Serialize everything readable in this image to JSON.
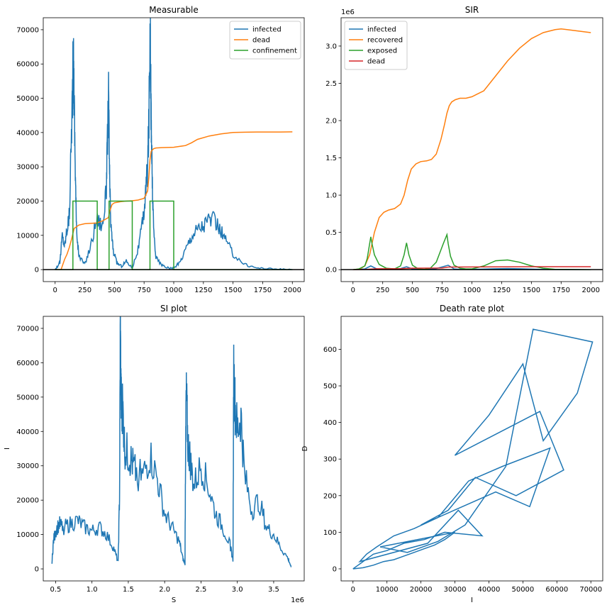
{
  "colors": {
    "infected": "#1f77b4",
    "dead_orange": "#ff7f0e",
    "green": "#2ca02c",
    "red": "#d62728",
    "black": "#000000"
  },
  "chart_data": [
    {
      "type": "line",
      "title": "Measurable",
      "xlabel": "",
      "ylabel": "",
      "xlim": [
        -100,
        2100
      ],
      "ylim": [
        -3500,
        73500
      ],
      "xticks": [
        0,
        250,
        500,
        750,
        1000,
        1250,
        1500,
        1750,
        2000
      ],
      "yticks": [
        0,
        10000,
        20000,
        30000,
        40000,
        50000,
        60000,
        70000
      ],
      "legend_position": "top-right",
      "hline": 0,
      "series": [
        {
          "name": "infected",
          "color": "#1f77b4",
          "noisy": true,
          "x": [
            0,
            40,
            60,
            80,
            100,
            120,
            140,
            150,
            155,
            160,
            170,
            180,
            200,
            250,
            300,
            350,
            400,
            430,
            440,
            450,
            455,
            460,
            470,
            490,
            520,
            560,
            600,
            650,
            700,
            740,
            760,
            780,
            790,
            800,
            805,
            810,
            815,
            820,
            830,
            850,
            900,
            950,
            1000,
            1050,
            1100,
            1150,
            1200,
            1250,
            1300,
            1350,
            1400,
            1450,
            1500,
            1600,
            1700,
            1800,
            1900,
            2000
          ],
          "y": [
            0,
            2000,
            10000,
            7000,
            12000,
            16000,
            44000,
            57000,
            59000,
            52000,
            30000,
            12000,
            4000,
            1500,
            7000,
            15000,
            13000,
            22000,
            35000,
            50500,
            40000,
            25000,
            13000,
            5500,
            2000,
            1000,
            2500,
            500,
            6000,
            14000,
            21000,
            30000,
            42000,
            70500,
            60000,
            43000,
            33000,
            24000,
            12000,
            3500,
            1200,
            500,
            400,
            2000,
            6000,
            10000,
            12000,
            13000,
            15000,
            14000,
            11000,
            8000,
            4500,
            1500,
            500,
            300,
            100,
            0
          ]
        },
        {
          "name": "dead",
          "color": "#ff7f0e",
          "x": [
            0,
            50,
            80,
            100,
            120,
            140,
            160,
            200,
            250,
            300,
            350,
            400,
            450,
            460,
            480,
            500,
            550,
            600,
            650,
            700,
            750,
            780,
            790,
            800,
            810,
            830,
            850,
            900,
            1000,
            1100,
            1150,
            1200,
            1300,
            1400,
            1500,
            1600,
            1700,
            1800,
            1900,
            2000
          ],
          "y": [
            0,
            0,
            3000,
            4500,
            6500,
            9000,
            12000,
            13000,
            13400,
            13500,
            13600,
            14200,
            15200,
            17000,
            19000,
            19500,
            19800,
            20000,
            20100,
            20300,
            20800,
            23000,
            27000,
            32000,
            34500,
            35300,
            35500,
            35600,
            35700,
            36200,
            37000,
            38000,
            39000,
            39600,
            40000,
            40100,
            40150,
            40150,
            40150,
            40200
          ]
        },
        {
          "name": "confinement",
          "color": "#2ca02c",
          "x": [
            0,
            150,
            150,
            355,
            355,
            455,
            455,
            650,
            650,
            800,
            800,
            1000,
            1000,
            2000
          ],
          "y": [
            0,
            0,
            20000,
            20000,
            0,
            0,
            20000,
            20000,
            0,
            0,
            20000,
            20000,
            0,
            0
          ]
        }
      ]
    },
    {
      "type": "line",
      "title": "SIR",
      "xlabel": "",
      "ylabel": "",
      "exponent_label": "1e6",
      "xlim": [
        -100,
        2100
      ],
      "ylim": [
        -0.16,
        3.38
      ],
      "xticks": [
        0,
        250,
        500,
        750,
        1000,
        1250,
        1500,
        1750,
        2000
      ],
      "yticks": [
        0.0,
        0.5,
        1.0,
        1.5,
        2.0,
        2.5,
        3.0
      ],
      "ytick_labels": [
        "0.0",
        "0.5",
        "1.0",
        "1.5",
        "2.0",
        "2.5",
        "3.0"
      ],
      "legend_position": "top-left",
      "hline": 0,
      "series": [
        {
          "name": "infected",
          "color": "#1f77b4",
          "x": [
            0,
            100,
            150,
            200,
            300,
            400,
            450,
            500,
            600,
            700,
            800,
            850,
            900,
            1000,
            1200,
            1300,
            1400,
            1600,
            2000
          ],
          "y": [
            0,
            0.01,
            0.05,
            0.01,
            0.005,
            0.015,
            0.04,
            0.01,
            0.005,
            0.015,
            0.06,
            0.01,
            0.004,
            0.004,
            0.012,
            0.015,
            0.012,
            0.004,
            0
          ]
        },
        {
          "name": "recovered",
          "color": "#ff7f0e",
          "x": [
            0,
            60,
            100,
            140,
            180,
            220,
            260,
            300,
            350,
            400,
            430,
            460,
            490,
            530,
            570,
            620,
            660,
            700,
            740,
            770,
            790,
            810,
            830,
            860,
            900,
            950,
            1000,
            1050,
            1100,
            1200,
            1300,
            1400,
            1500,
            1600,
            1700,
            1750,
            1800,
            1900,
            2000
          ],
          "y": [
            0,
            0.01,
            0.05,
            0.2,
            0.5,
            0.7,
            0.77,
            0.8,
            0.82,
            0.88,
            1.0,
            1.2,
            1.35,
            1.42,
            1.45,
            1.46,
            1.48,
            1.55,
            1.75,
            1.95,
            2.1,
            2.2,
            2.25,
            2.28,
            2.3,
            2.3,
            2.32,
            2.36,
            2.4,
            2.6,
            2.8,
            2.97,
            3.1,
            3.18,
            3.22,
            3.23,
            3.22,
            3.2,
            3.18
          ]
        },
        {
          "name": "exposed",
          "color": "#2ca02c",
          "x": [
            0,
            50,
            100,
            120,
            140,
            150,
            160,
            180,
            220,
            280,
            350,
            400,
            430,
            450,
            470,
            500,
            550,
            600,
            650,
            700,
            760,
            790,
            800,
            820,
            850,
            900,
            950,
            1000,
            1100,
            1200,
            1300,
            1400,
            1500,
            1600,
            1700,
            2000
          ],
          "y": [
            0,
            0.01,
            0.05,
            0.15,
            0.35,
            0.44,
            0.35,
            0.2,
            0.07,
            0.02,
            0.01,
            0.05,
            0.2,
            0.36,
            0.2,
            0.06,
            0.01,
            0.005,
            0.02,
            0.1,
            0.35,
            0.47,
            0.35,
            0.18,
            0.06,
            0.02,
            0.01,
            0.01,
            0.05,
            0.12,
            0.13,
            0.1,
            0.05,
            0.02,
            0.005,
            0
          ]
        },
        {
          "name": "dead",
          "color": "#d62728",
          "x": [
            0,
            100,
            200,
            400,
            500,
            750,
            800,
            1000,
            1500,
            2000
          ],
          "y": [
            0,
            0.003,
            0.012,
            0.014,
            0.02,
            0.022,
            0.035,
            0.036,
            0.04,
            0.04
          ]
        }
      ]
    },
    {
      "type": "line",
      "title": "SI plot",
      "xlabel": "S",
      "ylabel": "I",
      "exponent_label": "1e6",
      "xlim": [
        0.33,
        3.92
      ],
      "ylim": [
        -3500,
        73500
      ],
      "xticks": [
        0.5,
        1.0,
        1.5,
        2.0,
        2.5,
        3.0,
        3.5
      ],
      "xtick_labels": [
        "0.5",
        "1.0",
        "1.5",
        "2.0",
        "2.5",
        "3.0",
        "3.5"
      ],
      "yticks": [
        0,
        10000,
        20000,
        30000,
        40000,
        50000,
        60000,
        70000
      ],
      "series": [
        {
          "name": "",
          "color": "#1f77b4",
          "noisy": true,
          "x": [
            0.45,
            0.47,
            0.5,
            0.55,
            0.6,
            0.7,
            0.8,
            0.9,
            1.0,
            1.1,
            1.2,
            1.3,
            1.36,
            1.38,
            1.39,
            1.4,
            1.41,
            1.42,
            1.45,
            1.5,
            1.55,
            1.6,
            1.7,
            1.8,
            1.9,
            2.0,
            2.1,
            2.2,
            2.25,
            2.28,
            2.29,
            2.3,
            2.32,
            2.35,
            2.4,
            2.5,
            2.6,
            2.7,
            2.8,
            2.9,
            2.94,
            2.95,
            2.97,
            3.0,
            3.05,
            3.1,
            3.2,
            3.3,
            3.4,
            3.5,
            3.6,
            3.7,
            3.74
          ],
          "y": [
            2000,
            8000,
            11000,
            13000,
            12000,
            13000,
            14000,
            12000,
            11000,
            12000,
            10000,
            6000,
            2000,
            22000,
            70500,
            50000,
            45000,
            48000,
            35000,
            33000,
            31000,
            28000,
            27000,
            33000,
            26000,
            16000,
            12000,
            8000,
            3000,
            1500,
            45000,
            50000,
            36000,
            32000,
            24000,
            30000,
            24000,
            16000,
            12000,
            7000,
            2500,
            58000,
            47000,
            40000,
            44000,
            27000,
            17000,
            20000,
            12000,
            10000,
            6000,
            3000,
            500
          ]
        }
      ]
    },
    {
      "type": "line",
      "title": "Death rate plot",
      "xlabel": "I",
      "ylabel": "D",
      "xlim": [
        -3500,
        73500
      ],
      "ylim": [
        -33,
        690
      ],
      "xticks": [
        0,
        10000,
        20000,
        30000,
        40000,
        50000,
        60000,
        70000
      ],
      "yticks": [
        0,
        100,
        200,
        300,
        400,
        500,
        600
      ],
      "series": [
        {
          "name": "",
          "color": "#1f77b4",
          "x": [
            0,
            3000,
            6000,
            9000,
            12000,
            15000,
            18000,
            21000,
            24000,
            27000,
            30000,
            8000,
            16000,
            25000,
            33000,
            45000,
            53000,
            70500,
            66000,
            56000,
            50000,
            40000,
            30000,
            55000,
            62000,
            48000,
            36000,
            28000,
            20000,
            42000,
            52000,
            58000,
            44000,
            34000,
            25000,
            18000,
            12000,
            7000,
            4000,
            2000,
            22000,
            31000,
            38000,
            27000,
            21000,
            15000,
            10000,
            6000,
            3000,
            1500,
            0
          ],
          "y": [
            0,
            3,
            10,
            20,
            25,
            35,
            45,
            55,
            65,
            80,
            100,
            60,
            45,
            75,
            120,
            280,
            655,
            620,
            480,
            350,
            560,
            420,
            310,
            430,
            270,
            200,
            250,
            160,
            120,
            210,
            170,
            330,
            280,
            240,
            140,
            110,
            90,
            60,
            40,
            20,
            70,
            160,
            90,
            100,
            80,
            70,
            50,
            40,
            20,
            10,
            0
          ]
        }
      ]
    }
  ]
}
